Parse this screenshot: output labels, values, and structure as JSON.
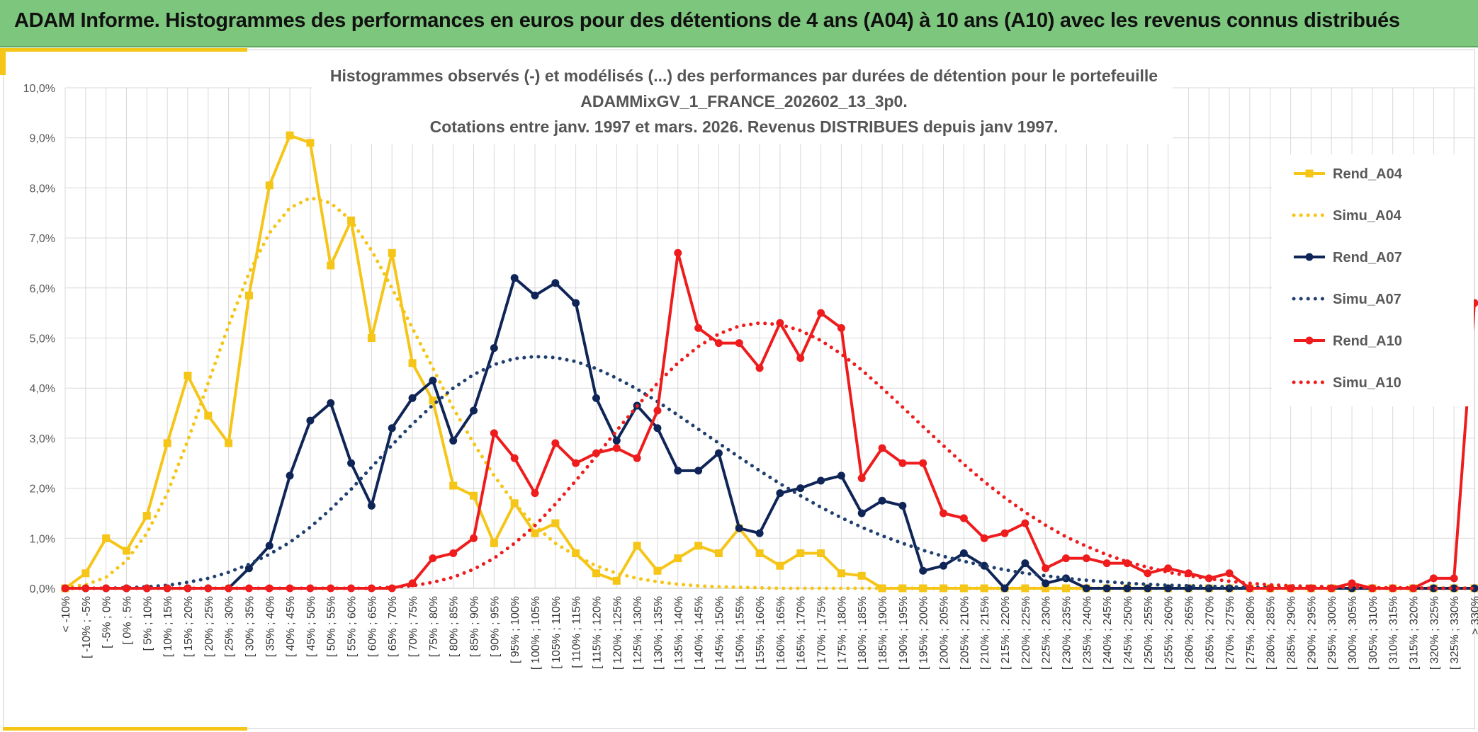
{
  "header": {
    "title": "ADAM Informe. Histogrammes des performances en euros pour des détentions de 4 ans (A04) à 10 ans (A10) avec les revenus connus distribués"
  },
  "chart_data": {
    "type": "line",
    "title_lines": [
      "Histogrammes observés (-) et modélisés (...) des performances par durées de détention pour le portefeuille",
      "ADAMMixGV_1_FRANCE_202602_13_3p0.",
      "Cotations entre janv. 1997 et mars. 2026. Revenus DISTRIBUES depuis janv 1997."
    ],
    "ylim": [
      0,
      10
    ],
    "yticks": [
      "0,0%",
      "1,0%",
      "2,0%",
      "3,0%",
      "4,0%",
      "5,0%",
      "6,0%",
      "7,0%",
      "8,0%",
      "9,0%",
      "10,0%"
    ],
    "legend_position": "right",
    "categories": [
      "< -10%",
      "[ -10% ; -5%",
      "[ -5% ; 0%",
      "[ 0% ; 5%",
      "[ 5% ; 10%",
      "[ 10% ; 15%",
      "[ 15% ; 20%",
      "[ 20% ; 25%",
      "[ 25% ; 30%",
      "[ 30% ; 35%",
      "[ 35% ; 40%",
      "[ 40% ; 45%",
      "[ 45% ; 50%",
      "[ 50% ; 55%",
      "[ 55% ; 60%",
      "[ 60% ; 65%",
      "[ 65% ; 70%",
      "[ 70% ; 75%",
      "[ 75% ; 80%",
      "[ 80% ; 85%",
      "[ 85% ; 90%",
      "[ 90% ; 95%",
      "[ 95% ; 100%",
      "[ 100% ; 105%",
      "[ 105% ; 110%",
      "[ 110% ; 115%",
      "[ 115% ; 120%",
      "[ 120% ; 125%",
      "[ 125% ; 130%",
      "[ 130% ; 135%",
      "[ 135% ; 140%",
      "[ 140% ; 145%",
      "[ 145% ; 150%",
      "[ 150% ; 155%",
      "[ 155% ; 160%",
      "[ 160% ; 165%",
      "[ 165% ; 170%",
      "[ 170% ; 175%",
      "[ 175% ; 180%",
      "[ 180% ; 185%",
      "[ 185% ; 190%",
      "[ 190% ; 195%",
      "[ 195% ; 200%",
      "[ 200% ; 205%",
      "[ 205% ; 210%",
      "[ 210% ; 215%",
      "[ 215% ; 220%",
      "[ 220% ; 225%",
      "[ 225% ; 230%",
      "[ 230% ; 235%",
      "[ 235% ; 240%",
      "[ 240% ; 245%",
      "[ 245% ; 250%",
      "[ 250% ; 255%",
      "[ 255% ; 260%",
      "[ 260% ; 265%",
      "[ 265% ; 270%",
      "[ 270% ; 275%",
      "[ 275% ; 280%",
      "[ 280% ; 285%",
      "[ 285% ; 290%",
      "[ 290% ; 295%",
      "[ 295% ; 300%",
      "[ 300% ; 305%",
      "[ 305% ; 310%",
      "[ 310% ; 315%",
      "[ 315% ; 320%",
      "[ 320% ; 325%",
      "[ 325% ; 330%",
      "> 330%"
    ],
    "series": [
      {
        "name": "Rend_A04",
        "style": "solid",
        "marker": "square",
        "color": "#f5c518",
        "values": [
          0,
          0.3,
          1.0,
          0.75,
          1.45,
          2.9,
          4.25,
          3.45,
          2.9,
          5.85,
          8.05,
          9.05,
          8.9,
          6.45,
          7.35,
          5.0,
          6.7,
          4.5,
          3.75,
          2.05,
          1.85,
          0.9,
          1.7,
          1.1,
          1.3,
          0.7,
          0.3,
          0.15,
          0.85,
          0.35,
          0.6,
          0.85,
          0.7,
          1.2,
          0.7,
          0.45,
          0.7,
          0.7,
          0.3,
          0.25,
          0,
          0,
          0,
          0,
          0,
          0,
          0,
          0,
          0,
          0,
          0,
          0,
          0,
          0,
          0,
          0,
          0,
          0,
          0,
          0,
          0,
          0,
          0,
          0,
          0,
          0,
          0,
          0,
          0,
          0
        ]
      },
      {
        "name": "Simu_A04",
        "style": "dotted",
        "color": "#f5c518",
        "values": [
          0.02,
          0.07,
          0.22,
          0.55,
          1.1,
          1.9,
          2.95,
          4.1,
          5.25,
          6.3,
          7.1,
          7.6,
          7.8,
          7.7,
          7.35,
          6.75,
          6.0,
          5.2,
          4.4,
          3.6,
          2.9,
          2.25,
          1.7,
          1.25,
          0.9,
          0.65,
          0.45,
          0.3,
          0.2,
          0.13,
          0.08,
          0.05,
          0.03,
          0.02,
          0.01,
          0,
          0,
          0,
          0,
          0,
          0,
          0,
          0,
          0,
          0,
          0,
          0,
          0,
          0,
          0,
          0,
          0,
          0,
          0,
          0,
          0,
          0,
          0,
          0,
          0,
          0,
          0,
          0,
          0,
          0,
          0,
          0,
          0,
          0,
          0
        ]
      },
      {
        "name": "Rend_A07",
        "style": "solid",
        "marker": "circle",
        "color": "#0f2557",
        "values": [
          0,
          0,
          0,
          0,
          0,
          0,
          0,
          0,
          0,
          0.4,
          0.85,
          2.25,
          3.35,
          3.7,
          2.5,
          1.65,
          3.2,
          3.8,
          4.15,
          2.95,
          3.55,
          4.8,
          6.2,
          5.85,
          6.1,
          5.7,
          3.8,
          2.95,
          3.65,
          3.2,
          2.35,
          2.35,
          2.7,
          1.2,
          1.1,
          1.9,
          2.0,
          2.15,
          2.25,
          1.5,
          1.75,
          1.65,
          0.35,
          0.45,
          0.7,
          0.45,
          0,
          0.5,
          0.1,
          0.2,
          0,
          0,
          0,
          0,
          0,
          0,
          0,
          0,
          0,
          0,
          0,
          0,
          0,
          0,
          0,
          0,
          0,
          0,
          0,
          0
        ]
      },
      {
        "name": "Simu_A07",
        "style": "dotted",
        "color": "#1f3f6e",
        "values": [
          0,
          0,
          0,
          0.01,
          0.03,
          0.06,
          0.12,
          0.2,
          0.32,
          0.48,
          0.68,
          0.92,
          1.22,
          1.58,
          1.98,
          2.42,
          2.86,
          3.28,
          3.66,
          4.0,
          4.27,
          4.47,
          4.59,
          4.63,
          4.61,
          4.53,
          4.39,
          4.2,
          3.98,
          3.73,
          3.46,
          3.18,
          2.9,
          2.62,
          2.35,
          2.09,
          1.85,
          1.62,
          1.41,
          1.22,
          1.05,
          0.9,
          0.76,
          0.64,
          0.54,
          0.45,
          0.37,
          0.3,
          0.25,
          0.2,
          0.16,
          0.13,
          0.1,
          0.08,
          0.06,
          0.05,
          0.04,
          0.03,
          0.02,
          0.02,
          0.01,
          0.01,
          0.01,
          0,
          0,
          0,
          0,
          0,
          0,
          0
        ]
      },
      {
        "name": "Rend_A10",
        "style": "solid",
        "marker": "circle",
        "color": "#ee1c1c",
        "values": [
          0,
          0,
          0,
          0,
          0,
          0,
          0,
          0,
          0,
          0,
          0,
          0,
          0,
          0,
          0,
          0,
          0,
          0.1,
          0.6,
          0.7,
          1.0,
          3.1,
          2.6,
          1.9,
          2.9,
          2.5,
          2.7,
          2.8,
          2.6,
          3.55,
          6.7,
          5.2,
          4.9,
          4.9,
          4.4,
          5.3,
          4.6,
          5.5,
          5.2,
          2.2,
          2.8,
          2.5,
          2.5,
          1.5,
          1.4,
          1.0,
          1.1,
          1.3,
          0.4,
          0.6,
          0.6,
          0.5,
          0.5,
          0.3,
          0.4,
          0.3,
          0.2,
          0.3,
          0,
          0,
          0,
          0,
          0,
          0.1,
          0,
          0,
          0,
          0.2,
          0.2,
          5.7
        ]
      },
      {
        "name": "Simu_A10",
        "style": "dotted",
        "color": "#ee1c1c",
        "values": [
          0,
          0,
          0,
          0,
          0,
          0,
          0,
          0,
          0,
          0,
          0,
          0,
          0,
          0,
          0,
          0,
          0.02,
          0.05,
          0.12,
          0.22,
          0.38,
          0.6,
          0.9,
          1.25,
          1.68,
          2.15,
          2.64,
          3.15,
          3.64,
          4.1,
          4.5,
          4.83,
          5.08,
          5.24,
          5.3,
          5.27,
          5.15,
          4.95,
          4.68,
          4.36,
          4.0,
          3.62,
          3.23,
          2.85,
          2.48,
          2.13,
          1.81,
          1.52,
          1.26,
          1.03,
          0.84,
          0.67,
          0.53,
          0.42,
          0.32,
          0.25,
          0.19,
          0.14,
          0.1,
          0.07,
          0.05,
          0.04,
          0.03,
          0.02,
          0.01,
          0.01,
          0.01,
          0,
          0,
          0
        ]
      }
    ]
  }
}
